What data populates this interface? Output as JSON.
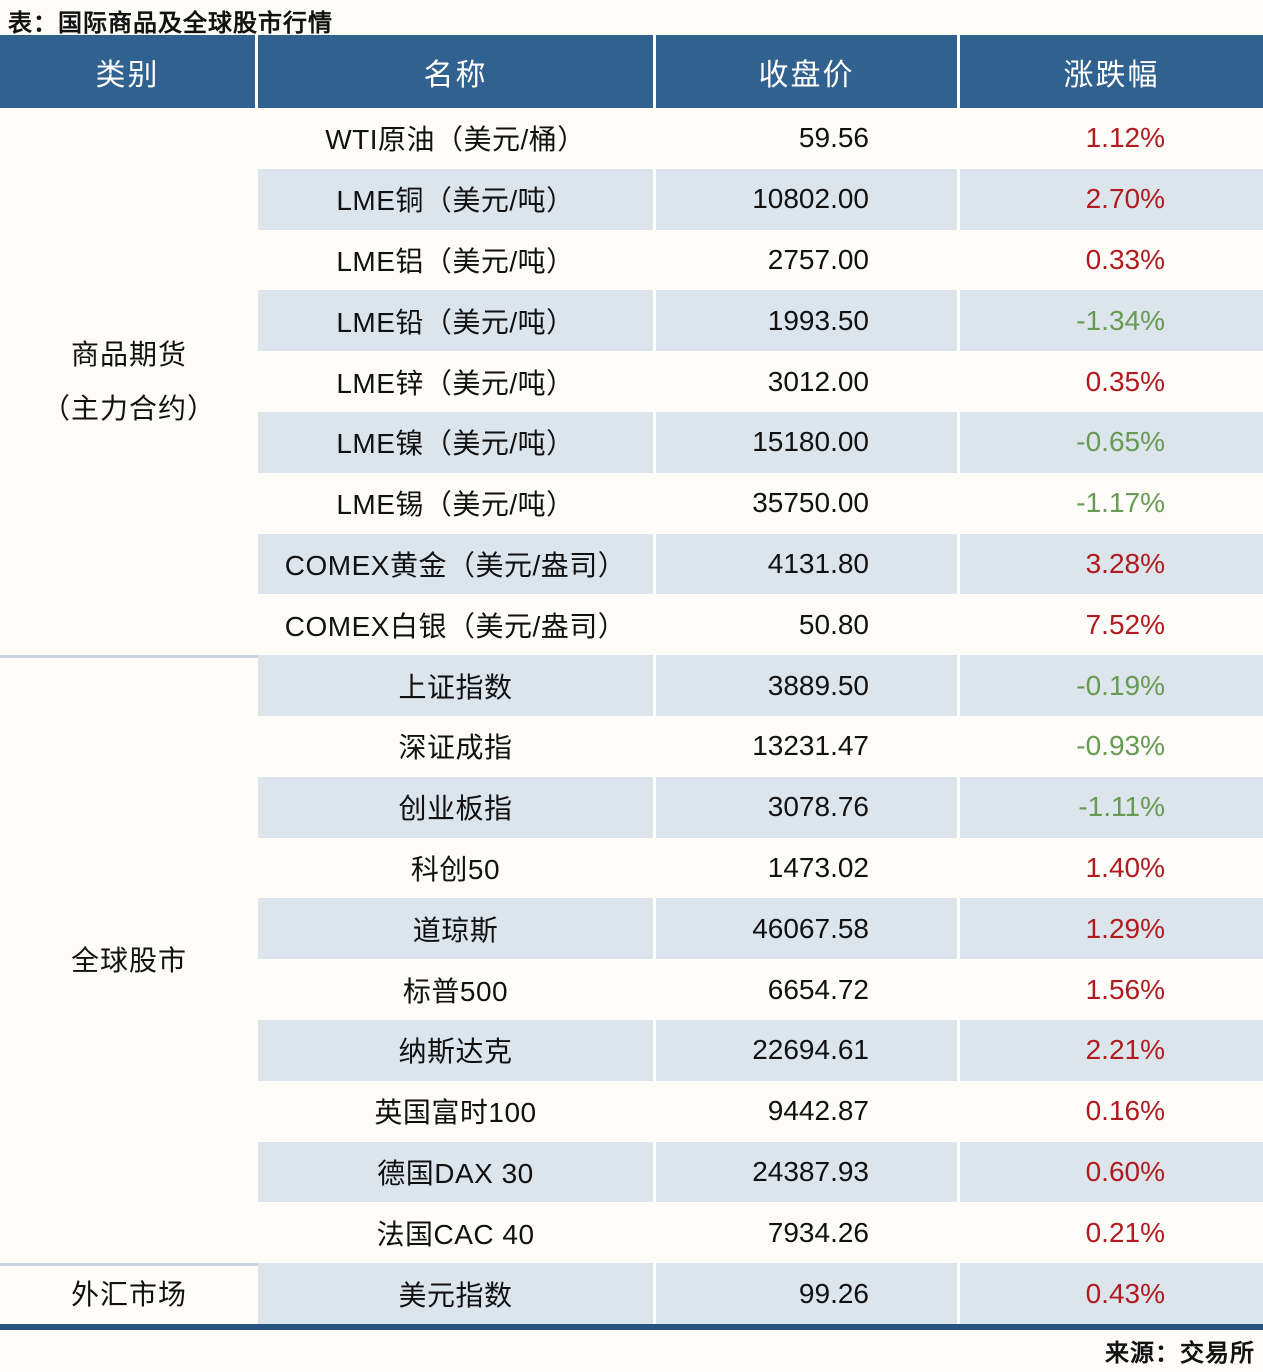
{
  "page": {
    "title": "表：国际商品及全球股市行情",
    "source": "来源：交易所"
  },
  "table": {
    "columns": [
      "类别",
      "名称",
      "收盘价",
      "涨跌幅"
    ],
    "sections": [
      {
        "category": "商品期货\n（主力合约）",
        "rows": [
          {
            "name": "WTI原油（美元/桶）",
            "close": "59.56",
            "change": "1.12%",
            "dir": "up"
          },
          {
            "name": "LME铜（美元/吨）",
            "close": "10802.00",
            "change": "2.70%",
            "dir": "up"
          },
          {
            "name": "LME铝（美元/吨）",
            "close": "2757.00",
            "change": "0.33%",
            "dir": "up"
          },
          {
            "name": "LME铅（美元/吨）",
            "close": "1993.50",
            "change": "-1.34%",
            "dir": "down"
          },
          {
            "name": "LME锌（美元/吨）",
            "close": "3012.00",
            "change": "0.35%",
            "dir": "up"
          },
          {
            "name": "LME镍（美元/吨）",
            "close": "15180.00",
            "change": "-0.65%",
            "dir": "down"
          },
          {
            "name": "LME锡（美元/吨）",
            "close": "35750.00",
            "change": "-1.17%",
            "dir": "down"
          },
          {
            "name": "COMEX黄金（美元/盎司）",
            "close": "4131.80",
            "change": "3.28%",
            "dir": "up"
          },
          {
            "name": "COMEX白银（美元/盎司）",
            "close": "50.80",
            "change": "7.52%",
            "dir": "up"
          }
        ]
      },
      {
        "category": "全球股市",
        "rows": [
          {
            "name": "上证指数",
            "close": "3889.50",
            "change": "-0.19%",
            "dir": "down"
          },
          {
            "name": "深证成指",
            "close": "13231.47",
            "change": "-0.93%",
            "dir": "down"
          },
          {
            "name": "创业板指",
            "close": "3078.76",
            "change": "-1.11%",
            "dir": "down"
          },
          {
            "name": "科创50",
            "close": "1473.02",
            "change": "1.40%",
            "dir": "up"
          },
          {
            "name": "道琼斯",
            "close": "46067.58",
            "change": "1.29%",
            "dir": "up"
          },
          {
            "name": "标普500",
            "close": "6654.72",
            "change": "1.56%",
            "dir": "up"
          },
          {
            "name": "纳斯达克",
            "close": "22694.61",
            "change": "2.21%",
            "dir": "up"
          },
          {
            "name": "英国富时100",
            "close": "9442.87",
            "change": "0.16%",
            "dir": "up"
          },
          {
            "name": "德国DAX 30",
            "close": "24387.93",
            "change": "0.60%",
            "dir": "up"
          },
          {
            "name": "法国CAC 40",
            "close": "7934.26",
            "change": "0.21%",
            "dir": "up"
          }
        ]
      },
      {
        "category": "外汇市场",
        "rows": [
          {
            "name": "美元指数",
            "close": "99.26",
            "change": "0.43%",
            "dir": "up"
          }
        ]
      }
    ]
  },
  "colors": {
    "up_red": "#b01b20",
    "down_green": "#679a52",
    "header_bg": "#30618f",
    "stripe": "#dce4ec",
    "border_dark": "#27547e",
    "section_line": "#c9d4de"
  }
}
